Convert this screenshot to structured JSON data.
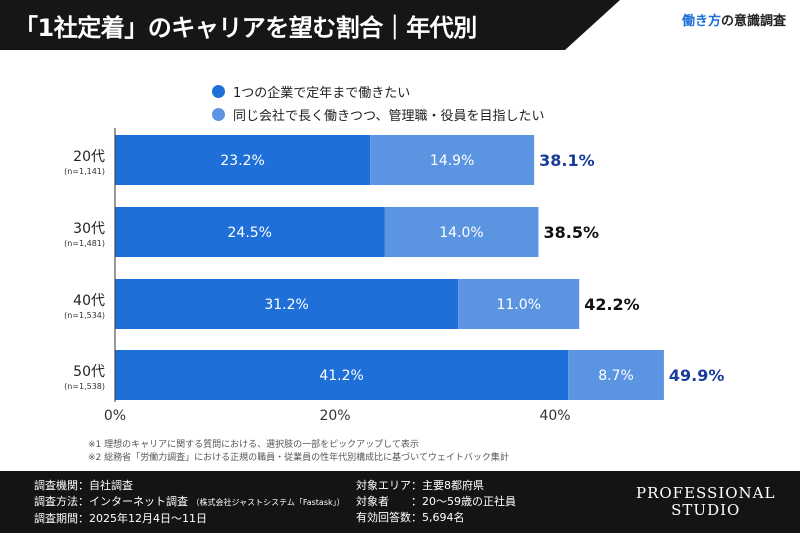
{
  "header": {
    "title": "「1社定着」のキャリアを望む割合｜年代別",
    "brand_accent": "働き方",
    "brand_rest": "の意識調査"
  },
  "colors": {
    "series1": "#1e6fd8",
    "series2": "#5b95e2",
    "highlight_total": "#1a3c9a",
    "total": "#111111"
  },
  "chart_data": {
    "type": "bar",
    "orientation": "horizontal",
    "stacked": true,
    "categories": [
      "20代",
      "30代",
      "40代",
      "50代"
    ],
    "category_notes": [
      "(n=1,141)",
      "(n=1,481)",
      "(n=1,534)",
      "(n=1,538)"
    ],
    "series": [
      {
        "name": "1つの企業で定年まで働きたい",
        "values": [
          23.2,
          24.5,
          31.2,
          41.2
        ],
        "labels": [
          "23.2%",
          "24.5%",
          "31.2%",
          "41.2%"
        ]
      },
      {
        "name": "同じ会社で長く働きつつ、管理職・役員を目指したい",
        "values": [
          14.9,
          14.0,
          11.0,
          8.7
        ],
        "labels": [
          "14.9%",
          "14.0%",
          "11.0%",
          "8.7%"
        ]
      }
    ],
    "totals": [
      38.1,
      38.5,
      42.2,
      49.9
    ],
    "total_labels": [
      "38.1%",
      "38.5%",
      "42.2%",
      "49.9%"
    ],
    "highlighted_totals": [
      0,
      3
    ],
    "xlim": [
      0,
      50
    ],
    "xticks": [
      "0%",
      "20%",
      "40%"
    ],
    "xtick_values": [
      0,
      20,
      40
    ],
    "legend": "top",
    "grid": false
  },
  "notes": [
    "※1 理想のキャリアに関する質問における、選択肢の一部をピックアップして表示",
    "※2 総務省「労働力調査」における正規の職員・従業員の性年代別構成比に基づいてウェイトバック集計"
  ],
  "footer": {
    "left": [
      "調査機関：自社調査",
      "調査方法：インターネット調査",
      "調査期間：2025年12月4日〜11日"
    ],
    "method_note": "（株式会社ジャストシステム「Fastask」）",
    "right": [
      "対象エリア：主要8都府県",
      "対象者　　：20〜59歳の正社員",
      "有効回答数：5,694名"
    ],
    "logo": [
      "PROFESSIONAL",
      "STUDIO"
    ]
  }
}
